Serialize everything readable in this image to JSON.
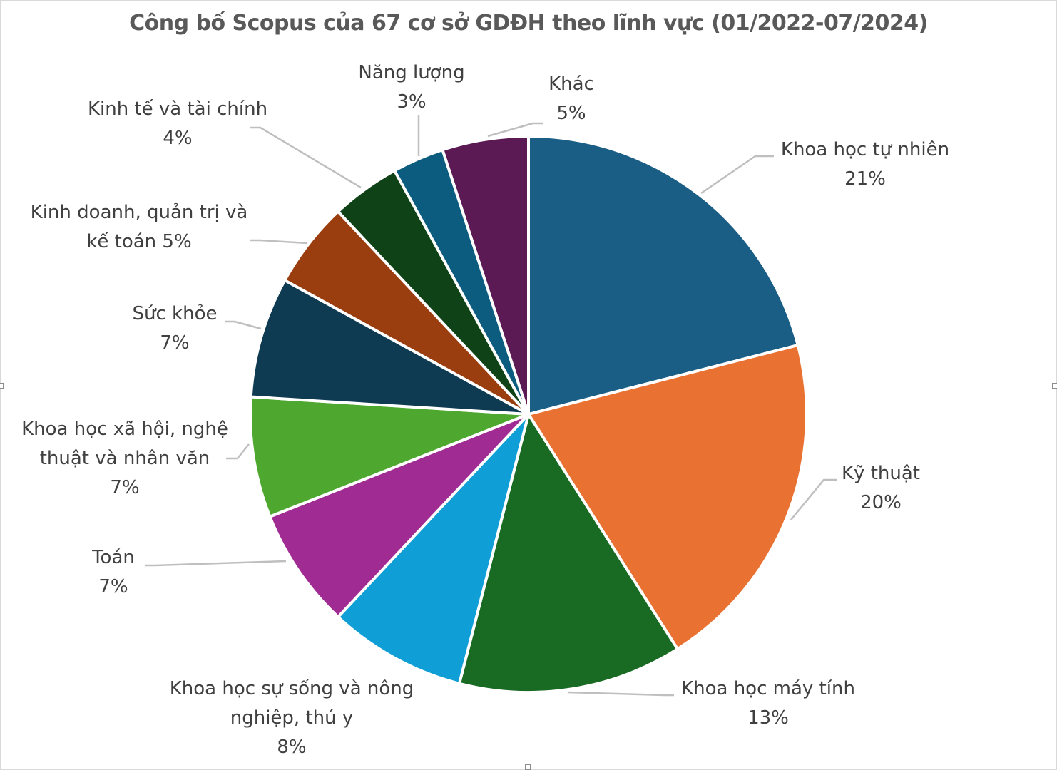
{
  "chart_data": {
    "type": "pie",
    "title": "Công bố Scopus của 67 cơ sở GDĐH theo lĩnh vực (01/2022-07/2024)",
    "slices": [
      {
        "id": "khtn",
        "label_lines": [
          "Khoa học tự nhiên",
          "21%"
        ],
        "value": 21,
        "color": "#1a5e85"
      },
      {
        "id": "kythuat",
        "label_lines": [
          "Kỹ thuật",
          "20%"
        ],
        "value": 20,
        "color": "#e97132"
      },
      {
        "id": "khmt",
        "label_lines": [
          "Khoa học máy tính",
          "13%"
        ],
        "value": 13,
        "color": "#196b24"
      },
      {
        "id": "khss",
        "label_lines": [
          "Khoa học sự sống và nông",
          "nghiệp, thú y",
          "8%"
        ],
        "value": 8,
        "color": "#0f9ed5"
      },
      {
        "id": "toan",
        "label_lines": [
          "Toán",
          "7%"
        ],
        "value": 7,
        "color": "#a02b93"
      },
      {
        "id": "khxh",
        "label_lines": [
          "Khoa học xã hội, nghệ",
          "thuật và nhân văn",
          "7%"
        ],
        "value": 7,
        "color": "#4ea72e"
      },
      {
        "id": "suckhoe",
        "label_lines": [
          "Sức khỏe",
          "7%"
        ],
        "value": 7,
        "color": "#0e3a52"
      },
      {
        "id": "kinhdoanh",
        "label_lines": [
          "Kinh doanh, quản trị và",
          "kế toán 5%"
        ],
        "value": 5,
        "color": "#9a3d0f"
      },
      {
        "id": "kinhte",
        "label_lines": [
          "Kinh tế và tài chính",
          "4%"
        ],
        "value": 4,
        "color": "#0f4216"
      },
      {
        "id": "nangluong",
        "label_lines": [
          "Năng lượng",
          "3%"
        ],
        "value": 3,
        "color": "#0c5c80"
      },
      {
        "id": "khac",
        "label_lines": [
          "Khác",
          "5%"
        ],
        "value": 5,
        "color": "#5c1a54"
      }
    ]
  }
}
